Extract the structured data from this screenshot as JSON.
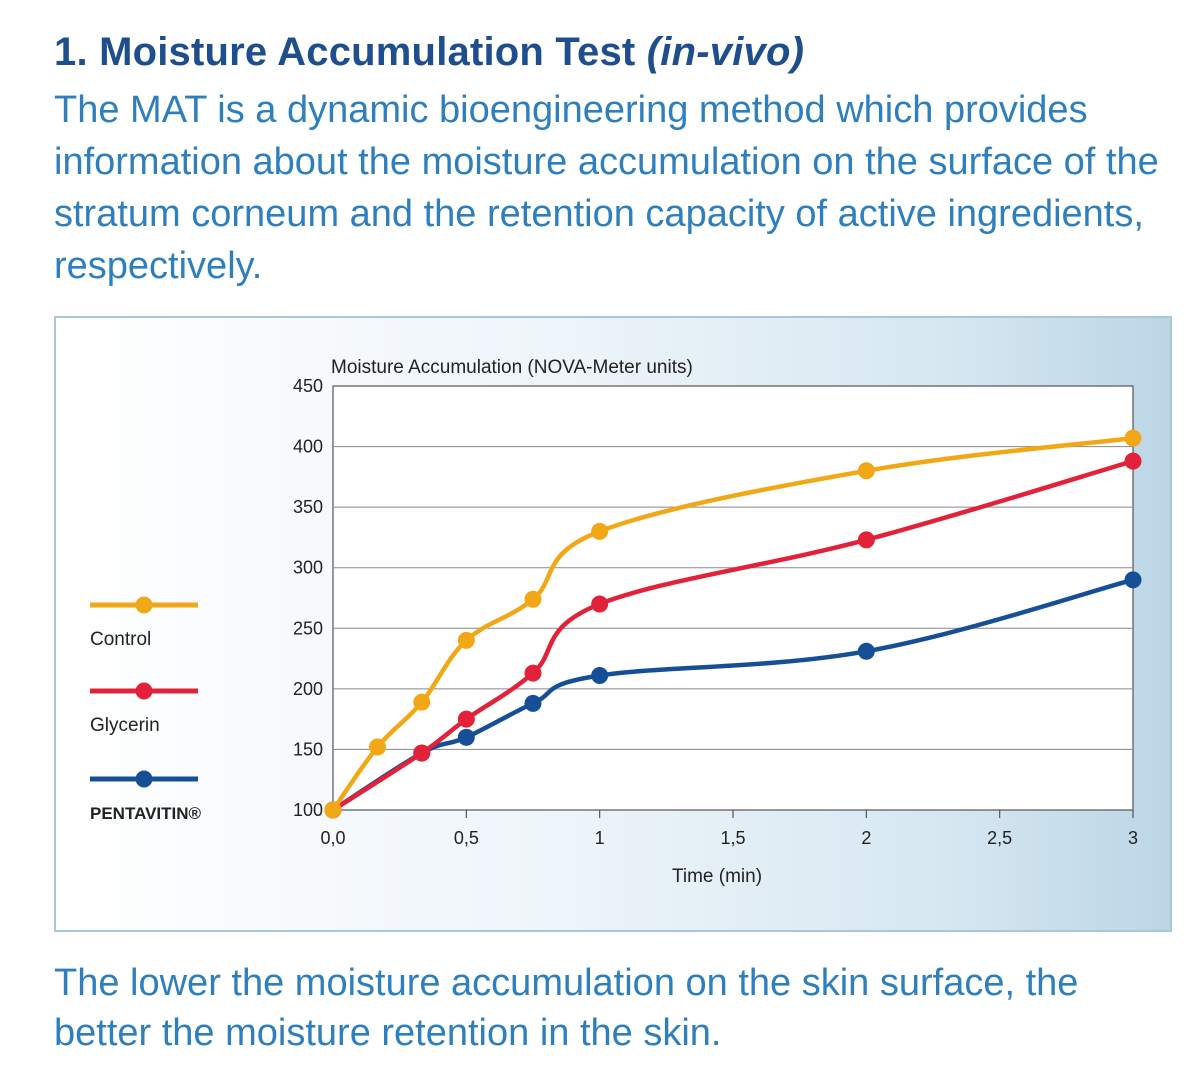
{
  "header": {
    "title_main": "1. Moisture Accumulation Test ",
    "title_em": "(in-vivo)",
    "intro": "The MAT is a dynamic bioengineering method which provides information about the moisture accumulation on the surface of the stratum corneum and the retention capacity of active ingredients, respectively."
  },
  "footer": {
    "text": "The lower the moisture accumulation on the skin surface, the better the moisture retention in the skin."
  },
  "colors": {
    "heading": "#1f4e8c",
    "body_text": "#2f7fbf"
  },
  "chart_data": {
    "type": "line",
    "title": "",
    "ylabel": "Moisture Accumulation (NOVA-Meter units)",
    "xlabel": "Time (min)",
    "xlim": [
      0,
      3
    ],
    "ylim": [
      100,
      450
    ],
    "grid": "horizontal",
    "legend_position": "left",
    "x_ticks": [
      0,
      0.5,
      1,
      1.5,
      2,
      2.5,
      3
    ],
    "x_tick_labels": [
      "0,0",
      "0,5",
      "1",
      "1,5",
      "2",
      "2,5",
      "3"
    ],
    "y_ticks": [
      100,
      150,
      200,
      250,
      300,
      350,
      400,
      450
    ],
    "y_tick_labels": [
      "100",
      "150",
      "200",
      "250",
      "300",
      "350",
      "400",
      "450"
    ],
    "series": [
      {
        "name": "Control",
        "color": "#f2a716",
        "x": [
          0,
          0.167,
          0.333,
          0.5,
          0.75,
          1,
          2,
          3
        ],
        "values": [
          100,
          152,
          189,
          240,
          274,
          330,
          380,
          407
        ]
      },
      {
        "name": "Glycerin",
        "color": "#e2213a",
        "x": [
          0,
          0.333,
          0.5,
          0.75,
          1,
          2,
          3
        ],
        "values": [
          100,
          147,
          175,
          213,
          270,
          323,
          388
        ]
      },
      {
        "name": "PENTAVITIN®",
        "color": "#174f96",
        "x": [
          0,
          0.333,
          0.5,
          0.75,
          1,
          2,
          3
        ],
        "values": [
          100,
          147,
          160,
          188,
          211,
          231,
          290
        ]
      }
    ]
  }
}
